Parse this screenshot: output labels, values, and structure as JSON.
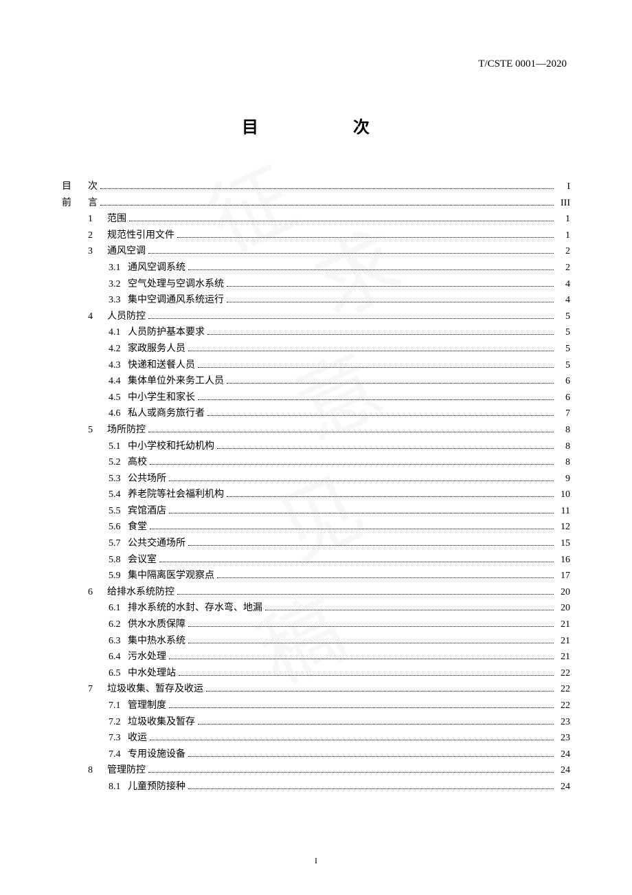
{
  "header_code": "T/CSTE 0001—2020",
  "title": "目　　次",
  "footer_page": "I",
  "toc": [
    {
      "prefix": "目",
      "label": "次",
      "page": "I",
      "indent": 0,
      "prefix_wide": true
    },
    {
      "prefix": "前",
      "label": "言",
      "page": "III",
      "indent": 0,
      "prefix_wide": true
    },
    {
      "prefix": "1",
      "label": "范围",
      "page": "1",
      "indent": 1
    },
    {
      "prefix": "2",
      "label": "规范性引用文件",
      "page": "1",
      "indent": 1
    },
    {
      "prefix": "3",
      "label": "通风空调",
      "page": "2",
      "indent": 1
    },
    {
      "prefix": "3.1",
      "label": "通风空调系统",
      "page": "2",
      "indent": 2
    },
    {
      "prefix": "3.2",
      "label": "空气处理与空调水系统",
      "page": "4",
      "indent": 2
    },
    {
      "prefix": "3.3",
      "label": "集中空调通风系统运行",
      "page": "4",
      "indent": 2
    },
    {
      "prefix": "4",
      "label": "人员防控",
      "page": "5",
      "indent": 1
    },
    {
      "prefix": "4.1",
      "label": "人员防护基本要求",
      "page": "5",
      "indent": 2
    },
    {
      "prefix": "4.2",
      "label": "家政服务人员",
      "page": "5",
      "indent": 2
    },
    {
      "prefix": "4.3",
      "label": "快递和送餐人员",
      "page": "5",
      "indent": 2
    },
    {
      "prefix": "4.4",
      "label": "集体单位外来务工人员",
      "page": "6",
      "indent": 2
    },
    {
      "prefix": "4.5",
      "label": "中小学生和家长",
      "page": "6",
      "indent": 2
    },
    {
      "prefix": "4.6",
      "label": "私人或商务旅行者",
      "page": "7",
      "indent": 2
    },
    {
      "prefix": "5",
      "label": "场所防控",
      "page": "8",
      "indent": 1
    },
    {
      "prefix": "5.1",
      "label": "中小学校和托幼机构",
      "page": "8",
      "indent": 2
    },
    {
      "prefix": "5.2",
      "label": "高校",
      "page": "8",
      "indent": 2
    },
    {
      "prefix": "5.3",
      "label": "公共场所",
      "page": "9",
      "indent": 2
    },
    {
      "prefix": "5.4",
      "label": "养老院等社会福利机构",
      "page": "10",
      "indent": 2
    },
    {
      "prefix": "5.5",
      "label": "宾馆酒店",
      "page": "11",
      "indent": 2
    },
    {
      "prefix": "5.6",
      "label": "食堂",
      "page": "12",
      "indent": 2
    },
    {
      "prefix": "5.7",
      "label": "公共交通场所",
      "page": "15",
      "indent": 2
    },
    {
      "prefix": "5.8",
      "label": "会议室",
      "page": "16",
      "indent": 2
    },
    {
      "prefix": "5.9",
      "label": "集中隔离医学观察点",
      "page": "17",
      "indent": 2
    },
    {
      "prefix": "6",
      "label": "给排水系统防控",
      "page": "20",
      "indent": 1
    },
    {
      "prefix": "6.1",
      "label": "排水系统的水封、存水弯、地漏",
      "page": "20",
      "indent": 2
    },
    {
      "prefix": "6.2",
      "label": "供水水质保障",
      "page": "21",
      "indent": 2
    },
    {
      "prefix": "6.3",
      "label": "集中热水系统",
      "page": "21",
      "indent": 2
    },
    {
      "prefix": "6.4",
      "label": "污水处理",
      "page": "21",
      "indent": 2
    },
    {
      "prefix": "6.5",
      "label": "中水处理站",
      "page": "22",
      "indent": 2
    },
    {
      "prefix": "7",
      "label": "垃圾收集、暂存及收运",
      "page": "22",
      "indent": 1
    },
    {
      "prefix": "7.1",
      "label": "管理制度",
      "page": "22",
      "indent": 2
    },
    {
      "prefix": "7.2",
      "label": "垃圾收集及暂存",
      "page": "23",
      "indent": 2
    },
    {
      "prefix": "7.3",
      "label": "收运",
      "page": "23",
      "indent": 2
    },
    {
      "prefix": "7.4",
      "label": "专用设施设备",
      "page": "24",
      "indent": 2
    },
    {
      "prefix": "8",
      "label": "管理防控",
      "page": "24",
      "indent": 1
    },
    {
      "prefix": "8.1",
      "label": "儿童预防接种",
      "page": "24",
      "indent": 2
    }
  ]
}
